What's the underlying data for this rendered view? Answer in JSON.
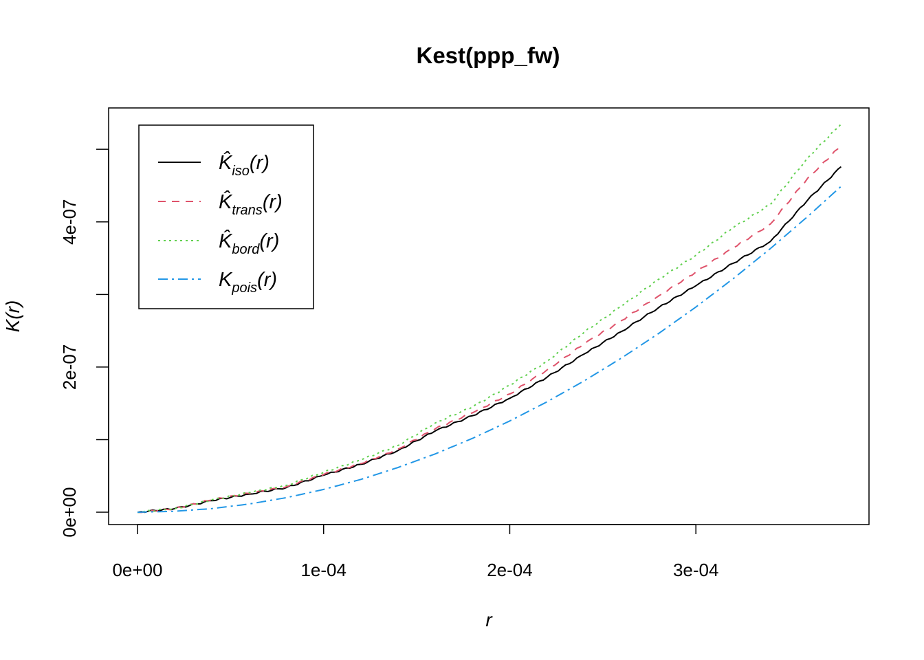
{
  "chart_data": {
    "type": "line",
    "title": "Kest(ppp_fw)",
    "xlabel": "r",
    "ylabel": "K(r)",
    "xlim": [
      -1.55e-05,
      0.000393
    ],
    "ylim": [
      -1.7e-08,
      5.57e-07
    ],
    "x_ticks": [
      {
        "value": 0,
        "label": "0e+00"
      },
      {
        "value": 0.0001,
        "label": "1e-04"
      },
      {
        "value": 0.0002,
        "label": "2e-04"
      },
      {
        "value": 0.0003,
        "label": "3e-04"
      }
    ],
    "y_ticks": [
      {
        "value": 0,
        "label": "0e+00"
      },
      {
        "value": 1e-07,
        "label": ""
      },
      {
        "value": 2e-07,
        "label": "2e-07"
      },
      {
        "value": 3e-07,
        "label": ""
      },
      {
        "value": 4e-07,
        "label": "4e-07"
      },
      {
        "value": 5e-07,
        "label": ""
      }
    ],
    "legend_position": "top-left",
    "x": [
      0,
      2e-05,
      4e-05,
      6e-05,
      8e-05,
      0.0001,
      0.00012,
      0.00014,
      0.00016,
      0.00018,
      0.0002,
      0.00022,
      0.00024,
      0.00026,
      0.00028,
      0.0003,
      0.00032,
      0.00034,
      0.00036,
      0.000378
    ],
    "series": [
      {
        "name": "K̂iso(r)",
        "main": "K̂",
        "sub": "iso",
        "suffix": "(r)",
        "color": "#000000",
        "dash": "",
        "values": [
          0,
          5e-09,
          1.6e-08,
          2.5e-08,
          3.4e-08,
          5.1e-08,
          6.6e-08,
          8.5e-08,
          1.12e-07,
          1.33e-07,
          1.57e-07,
          1.86e-07,
          2.18e-07,
          2.49e-07,
          2.82e-07,
          3.12e-07,
          3.43e-07,
          3.73e-07,
          4.3e-07,
          4.76e-07
        ]
      },
      {
        "name": "K̂trans(r)",
        "main": "K̂",
        "sub": "trans",
        "suffix": "(r)",
        "color": "#DF536B",
        "dash": "11,9",
        "values": [
          0,
          5e-09,
          1.7e-08,
          2.6e-08,
          3.5e-08,
          5.2e-08,
          6.7e-08,
          8.7e-08,
          1.15e-07,
          1.37e-07,
          1.63e-07,
          1.96e-07,
          2.32e-07,
          2.64e-07,
          2.98e-07,
          3.31e-07,
          3.64e-07,
          3.97e-07,
          4.6e-07,
          5.05e-07
        ]
      },
      {
        "name": "K̂bord(r)",
        "main": "K̂",
        "sub": "bord",
        "suffix": "(r)",
        "color": "#61D04F",
        "dash": "3,5",
        "values": [
          0,
          5e-09,
          1.7e-08,
          2.7e-08,
          3.7e-08,
          5.5e-08,
          7.2e-08,
          9.2e-08,
          1.23e-07,
          1.45e-07,
          1.75e-07,
          2.08e-07,
          2.48e-07,
          2.84e-07,
          3.21e-07,
          3.54e-07,
          3.92e-07,
          4.24e-07,
          4.88e-07,
          5.35e-07
        ]
      },
      {
        "name": "Kpois(r)",
        "main": "K",
        "sub": "pois",
        "suffix": "(r)",
        "color": "#2297E6",
        "dash": "14,6,3,6",
        "values": [
          0,
          1.3e-09,
          5e-09,
          1.13e-08,
          2.01e-08,
          3.14e-08,
          4.52e-08,
          6.16e-08,
          8.04e-08,
          1.018e-07,
          1.257e-07,
          1.521e-07,
          1.81e-07,
          2.124e-07,
          2.463e-07,
          2.827e-07,
          3.217e-07,
          3.632e-07,
          4.072e-07,
          4.489e-07
        ]
      }
    ]
  }
}
